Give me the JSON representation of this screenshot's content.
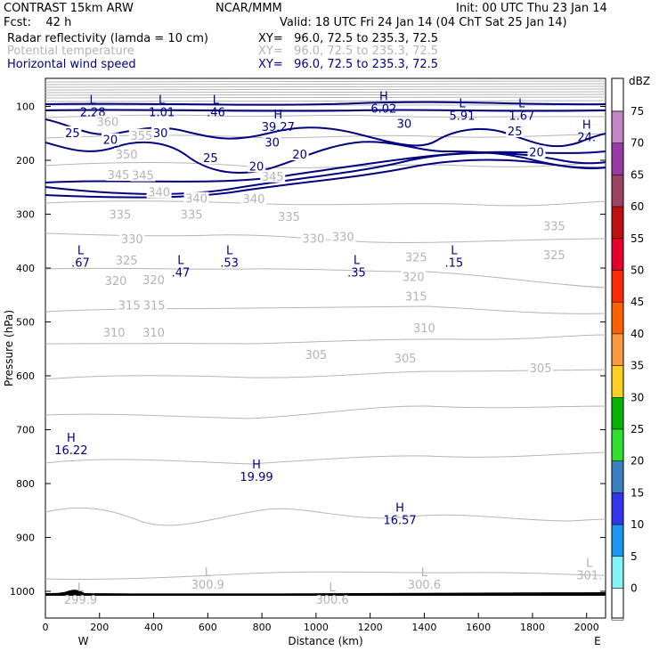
{
  "header": {
    "model": "CONTRAST 15km ARW",
    "center": "NCAR/MMM",
    "init": "Init: 00 UTC Thu 23 Jan 14",
    "fcst": "Fcst:    42 h",
    "valid": "Valid: 18 UTC Fri 24 Jan 14 (04 ChT Sat 25 Jan 14)"
  },
  "fields": [
    {
      "label": "Radar reflectivity (lamda = 10 cm)",
      "xy": "XY=   96.0, 72.5 to 235.3, 72.5",
      "color": "#000000"
    },
    {
      "label": "Potential temperature",
      "xy": "XY=   96.0, 72.5 to 235.3, 72.5",
      "color": "#b4b4b4"
    },
    {
      "label": "Horizontal wind speed",
      "xy": "XY=   96.0, 72.5 to 235.3, 72.5",
      "color": "#000080"
    }
  ],
  "chart_data": {
    "type": "cross-section",
    "xlabel": "Distance (km)",
    "ylabel": "Pressure (hPa)",
    "xlim": [
      0,
      2070
    ],
    "x_ticks": [
      0,
      200,
      400,
      600,
      800,
      1000,
      1200,
      1400,
      1600,
      1800,
      2000
    ],
    "y_ticks": [
      100,
      200,
      300,
      400,
      500,
      600,
      700,
      800,
      900,
      1000
    ],
    "x_end_labels": {
      "left": "W",
      "right": "E"
    },
    "colorbar": {
      "unit": "dBZ",
      "levels": [
        75,
        70,
        65,
        60,
        55,
        50,
        45,
        40,
        35,
        30,
        25,
        20,
        15,
        10,
        5,
        0
      ],
      "colors": [
        "#c286c3",
        "#9a3aa6",
        "#9b4360",
        "#c01010",
        "#e4002a",
        "#ff2a00",
        "#ff6000",
        "#f89a40",
        "#ffd020",
        "#04b404",
        "#30e030",
        "#3c7fbf",
        "#3434ee",
        "#1e98ee",
        "#84f4f4",
        "#ffffff"
      ]
    },
    "theta_contours": [
      {
        "value": "360",
        "label_pos": [
          230,
          130
        ]
      },
      {
        "value": "355",
        "label_pos": [
          355,
          155
        ]
      },
      {
        "value": "350",
        "label_pos": [
          300,
          190
        ]
      },
      {
        "value": "345",
        "label_pos": [
          270,
          228
        ]
      },
      {
        "value": "345",
        "label_pos": [
          360,
          229
        ]
      },
      {
        "value": "345",
        "label_pos": [
          840,
          231
        ]
      },
      {
        "value": "340",
        "label_pos": [
          420,
          260
        ]
      },
      {
        "value": "340",
        "label_pos": [
          558,
          272
        ]
      },
      {
        "value": "340",
        "label_pos": [
          770,
          273
        ]
      },
      {
        "value": "335",
        "label_pos": [
          276,
          302
        ]
      },
      {
        "value": "335",
        "label_pos": [
          540,
          302
        ]
      },
      {
        "value": "335",
        "label_pos": [
          900,
          306
        ]
      },
      {
        "value": "335",
        "label_pos": [
          1880,
          323
        ]
      },
      {
        "value": "330",
        "label_pos": [
          320,
          347
        ]
      },
      {
        "value": "330",
        "label_pos": [
          990,
          346
        ]
      },
      {
        "value": "330",
        "label_pos": [
          1100,
          343
        ]
      },
      {
        "value": "325",
        "label_pos": [
          300,
          387
        ]
      },
      {
        "value": "325",
        "label_pos": [
          1370,
          381
        ]
      },
      {
        "value": "325",
        "label_pos": [
          1880,
          377
        ]
      },
      {
        "value": "320",
        "label_pos": [
          260,
          425
        ]
      },
      {
        "value": "320",
        "label_pos": [
          400,
          423
        ]
      },
      {
        "value": "320",
        "label_pos": [
          1360,
          417
        ]
      },
      {
        "value": "315",
        "label_pos": [
          310,
          470
        ]
      },
      {
        "value": "315",
        "label_pos": [
          402,
          470
        ]
      },
      {
        "value": "315",
        "label_pos": [
          1370,
          454
        ]
      },
      {
        "value": "310",
        "label_pos": [
          254,
          521
        ]
      },
      {
        "value": "310",
        "label_pos": [
          400,
          521
        ]
      },
      {
        "value": "310",
        "label_pos": [
          1400,
          512
        ]
      },
      {
        "value": "305",
        "label_pos": [
          1830,
          587
        ]
      },
      {
        "value": "305",
        "label_pos": [
          1000,
          562
        ]
      },
      {
        "value": "305",
        "label_pos": [
          1330,
          569
        ]
      }
    ],
    "wind_labels": [
      {
        "text": "25",
        "x": 100,
        "y": 150
      },
      {
        "text": "20",
        "x": 240,
        "y": 163
      },
      {
        "text": "30",
        "x": 425,
        "y": 150
      },
      {
        "text": "30",
        "x": 838,
        "y": 168
      },
      {
        "text": "30",
        "x": 1326,
        "y": 133
      },
      {
        "text": "25",
        "x": 610,
        "y": 197
      },
      {
        "text": "20",
        "x": 780,
        "y": 212
      },
      {
        "text": "20",
        "x": 940,
        "y": 190
      },
      {
        "text": "25",
        "x": 1735,
        "y": 147
      },
      {
        "text": "20",
        "x": 1815,
        "y": 186
      }
    ],
    "markers": [
      {
        "kind": "L",
        "value": "2.28",
        "x": 175,
        "y": 98,
        "color": "#000080"
      },
      {
        "kind": "L",
        "value": "1.01",
        "x": 430,
        "y": 98,
        "color": "#000080"
      },
      {
        "kind": "L",
        "value": ".46",
        "x": 630,
        "y": 98,
        "color": "#000080"
      },
      {
        "kind": "H",
        "value": "6.02",
        "x": 1250,
        "y": 92,
        "color": "#000080"
      },
      {
        "kind": "L",
        "value": "5.91",
        "x": 1540,
        "y": 105,
        "color": "#000080"
      },
      {
        "kind": "L",
        "value": "1.67",
        "x": 1760,
        "y": 105,
        "color": "#000080"
      },
      {
        "kind": "H",
        "value": "39.27",
        "x": 860,
        "y": 126,
        "color": "#000080"
      },
      {
        "kind": "H",
        "value": "24.",
        "x": 2000,
        "y": 145,
        "color": "#000080"
      },
      {
        "kind": "L",
        "value": ".67",
        "x": 130,
        "y": 378,
        "color": "#000080"
      },
      {
        "kind": "L",
        "value": ".53",
        "x": 680,
        "y": 378,
        "color": "#000080"
      },
      {
        "kind": "L",
        "value": ".47",
        "x": 500,
        "y": 396,
        "color": "#000080"
      },
      {
        "kind": "L",
        "value": ".35",
        "x": 1150,
        "y": 396,
        "color": "#000080"
      },
      {
        "kind": "L",
        "value": ".15",
        "x": 1510,
        "y": 378,
        "color": "#000080"
      },
      {
        "kind": "H",
        "value": "16.22",
        "x": 95,
        "y": 726,
        "color": "#000080"
      },
      {
        "kind": "H",
        "value": "19.99",
        "x": 780,
        "y": 775,
        "color": "#000080"
      },
      {
        "kind": "H",
        "value": "16.57",
        "x": 1310,
        "y": 855,
        "color": "#000080"
      },
      {
        "kind": "L",
        "value": "300.9",
        "x": 600,
        "y": 975,
        "color": "#b4b4b4"
      },
      {
        "kind": "L",
        "value": "300.6",
        "x": 1400,
        "y": 975,
        "color": "#b4b4b4"
      },
      {
        "kind": "L",
        "value": "300.6",
        "x": 1060,
        "y": 1003,
        "color": "#b4b4b4"
      },
      {
        "kind": "L",
        "value": "299.9",
        "x": 130,
        "y": 1003,
        "color": "#b4b4b4"
      },
      {
        "kind": "L",
        "value": "301.",
        "x": 2010,
        "y": 958,
        "color": "#b4b4b4"
      }
    ]
  }
}
